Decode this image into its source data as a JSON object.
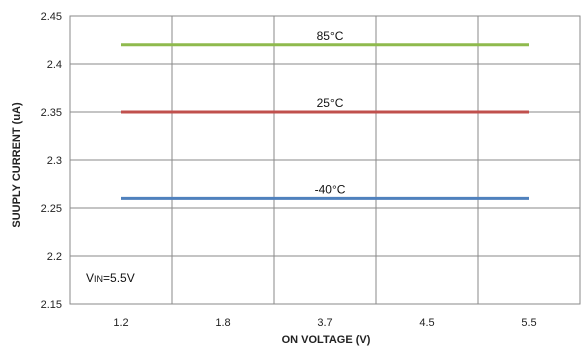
{
  "chart_data": {
    "type": "line",
    "title": "",
    "xlabel": "ON VOLTAGE (V)",
    "ylabel": "SUUPLY CURRENT (uA)",
    "categories": [
      "1.2",
      "1.8",
      "3.7",
      "4.5",
      "5.5"
    ],
    "ylim": [
      2.15,
      2.45
    ],
    "yticks": [
      "2.45",
      "2.4",
      "2.35",
      "2.3",
      "2.25",
      "2.2",
      "2.15"
    ],
    "grid": true,
    "series": [
      {
        "name": "85°C",
        "values": [
          2.42,
          2.42,
          2.42,
          2.42,
          2.42
        ],
        "color": "#8fba4d"
      },
      {
        "name": "25°C",
        "values": [
          2.35,
          2.35,
          2.35,
          2.35,
          2.35
        ],
        "color": "#c0504d"
      },
      {
        "name": "-40°C",
        "values": [
          2.26,
          2.26,
          2.26,
          2.26,
          2.26
        ],
        "color": "#4f81bd"
      }
    ],
    "annotation": {
      "prefix": "V",
      "subscript": "IN",
      "suffix": "=5.5V"
    }
  }
}
